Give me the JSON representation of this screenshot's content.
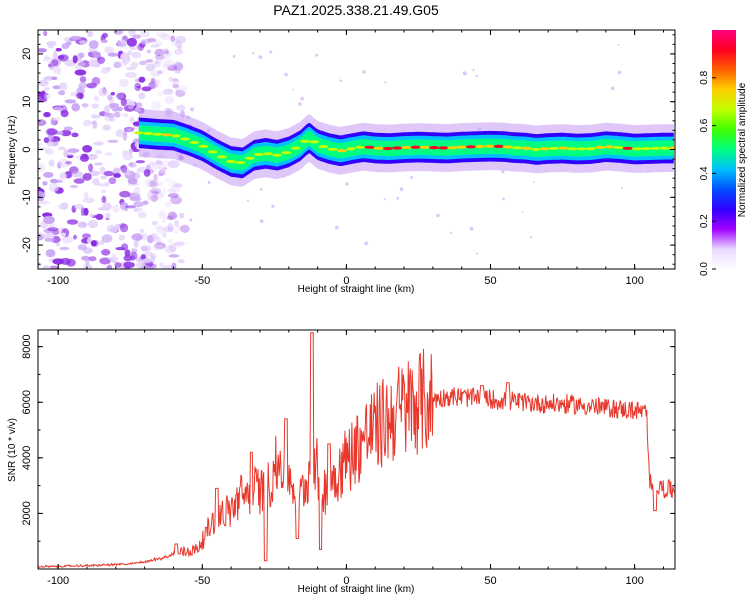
{
  "title": "PAZ1.2025.338.21.49.G05",
  "chart_data": [
    {
      "type": "heatmap",
      "xlabel": "Height of straight line (km)",
      "ylabel": "Frequency (Hz)",
      "xlim": [
        -107,
        114
      ],
      "ylim": [
        -25,
        25
      ],
      "xticks": [
        -100,
        -50,
        0,
        50,
        100
      ],
      "yticks": [
        -20,
        -10,
        0,
        10,
        20
      ],
      "tick_labels_x": [
        "-100",
        "-50",
        "0",
        "50",
        "100"
      ],
      "tick_labels_y": [
        "-20",
        "-10",
        "0",
        "10",
        "20"
      ],
      "colorbar": {
        "label": "Normalized spectral amplitude",
        "range": [
          0,
          1
        ],
        "ticks": [
          0.0,
          0.2,
          0.4,
          0.6,
          0.8
        ],
        "tick_labels": [
          "0.0",
          "0.2",
          "0.4",
          "0.6",
          "0.8"
        ],
        "colors": [
          "#ffffff",
          "#e8d8ff",
          "#a000ff",
          "#3000ff",
          "#0050ff",
          "#00c0ff",
          "#00ff80",
          "#40ff00",
          "#c0ff00",
          "#ffd000",
          "#ff6000",
          "#ff0020",
          "#ff0080"
        ]
      },
      "ridge": {
        "x": [
          -72,
          -66,
          -60,
          -55,
          -50,
          -45,
          -40,
          -36,
          -32,
          -28,
          -24,
          -20,
          -16,
          -13,
          -10,
          -6,
          -2,
          2,
          6,
          10,
          15,
          20,
          25,
          30,
          35,
          40,
          45,
          50,
          55,
          58,
          62,
          66,
          70,
          75,
          80,
          85,
          90,
          95,
          100,
          105,
          110,
          114
        ],
        "y": [
          3.5,
          3.2,
          3.0,
          2.0,
          0.8,
          -1.0,
          -2.5,
          -2.8,
          -1.2,
          -0.8,
          -1.2,
          -0.5,
          0.8,
          2.5,
          1.0,
          0.2,
          -0.3,
          0.2,
          0.6,
          0.3,
          0.2,
          0.4,
          0.5,
          0.4,
          0.3,
          0.5,
          0.6,
          0.7,
          0.6,
          0.4,
          0.3,
          0.0,
          0.2,
          0.3,
          0.1,
          0.2,
          0.6,
          0.4,
          0.1,
          0.2,
          0.3,
          0.3
        ],
        "amplitude": [
          0.7,
          0.8,
          0.9,
          0.85,
          0.8,
          0.8,
          0.85,
          0.8,
          0.75,
          0.7,
          0.75,
          0.7,
          0.75,
          0.7,
          0.8,
          0.85,
          0.9,
          0.9,
          0.9,
          0.95,
          0.95,
          0.95,
          0.95,
          0.95,
          0.95,
          1.0,
          1.0,
          1.0,
          0.95,
          0.85,
          0.9,
          0.85,
          0.9,
          0.85,
          0.85,
          0.9,
          0.85,
          0.9,
          0.9,
          0.85,
          0.8,
          0.8
        ]
      },
      "noise_region": {
        "x_range": [
          -107,
          -60
        ],
        "level": [
          0.05,
          0.35
        ]
      }
    },
    {
      "type": "line",
      "xlabel": "Height of straight line (km)",
      "ylabel": "SNR (10 * v/v)",
      "xlim": [
        -107,
        114
      ],
      "ylim": [
        0,
        8600
      ],
      "xticks": [
        -100,
        -50,
        0,
        50,
        100
      ],
      "yticks": [
        2000,
        4000,
        6000,
        8000
      ],
      "tick_labels_x": [
        "-100",
        "-50",
        "0",
        "50",
        "100"
      ],
      "tick_labels_y": [
        "2000",
        "4000",
        "6000",
        "8000"
      ],
      "series": [
        {
          "name": "SNR",
          "color": "#e8382c",
          "x": [
            -107,
            -90,
            -75,
            -68,
            -63,
            -58,
            -55,
            -52,
            -49,
            -46,
            -43,
            -40,
            -37,
            -34,
            -31,
            -28,
            -25,
            -22,
            -19,
            -16,
            -13,
            -11,
            -9,
            -7,
            -4,
            -1,
            2,
            5,
            8,
            12,
            16,
            20,
            25,
            30,
            35,
            40,
            50,
            60,
            70,
            80,
            90,
            100,
            104,
            105,
            107,
            110,
            114
          ],
          "y": [
            80,
            120,
            180,
            300,
            420,
            600,
            650,
            700,
            1200,
            1800,
            2000,
            2100,
            2600,
            2700,
            2900,
            2700,
            3600,
            3900,
            3100,
            2600,
            3400,
            4000,
            3000,
            2800,
            3400,
            3800,
            4200,
            4600,
            4900,
            5200,
            5500,
            5800,
            6000,
            6100,
            6200,
            6200,
            6100,
            6000,
            5950,
            5900,
            5800,
            5700,
            5650,
            3300,
            3000,
            2900,
            2800
          ],
          "spikes": [
            {
              "x": -59,
              "y": 900
            },
            {
              "x": -45,
              "y": 2900
            },
            {
              "x": -33,
              "y": 4200
            },
            {
              "x": -28,
              "y": 300
            },
            {
              "x": -21,
              "y": 5400
            },
            {
              "x": -17,
              "y": 1100
            },
            {
              "x": -12,
              "y": 8500
            },
            {
              "x": -9,
              "y": 700
            },
            {
              "x": -6,
              "y": 4500
            },
            {
              "x": 47,
              "y": 6600
            },
            {
              "x": 56,
              "y": 6700
            },
            {
              "x": 107,
              "y": 2100
            }
          ]
        }
      ]
    }
  ]
}
